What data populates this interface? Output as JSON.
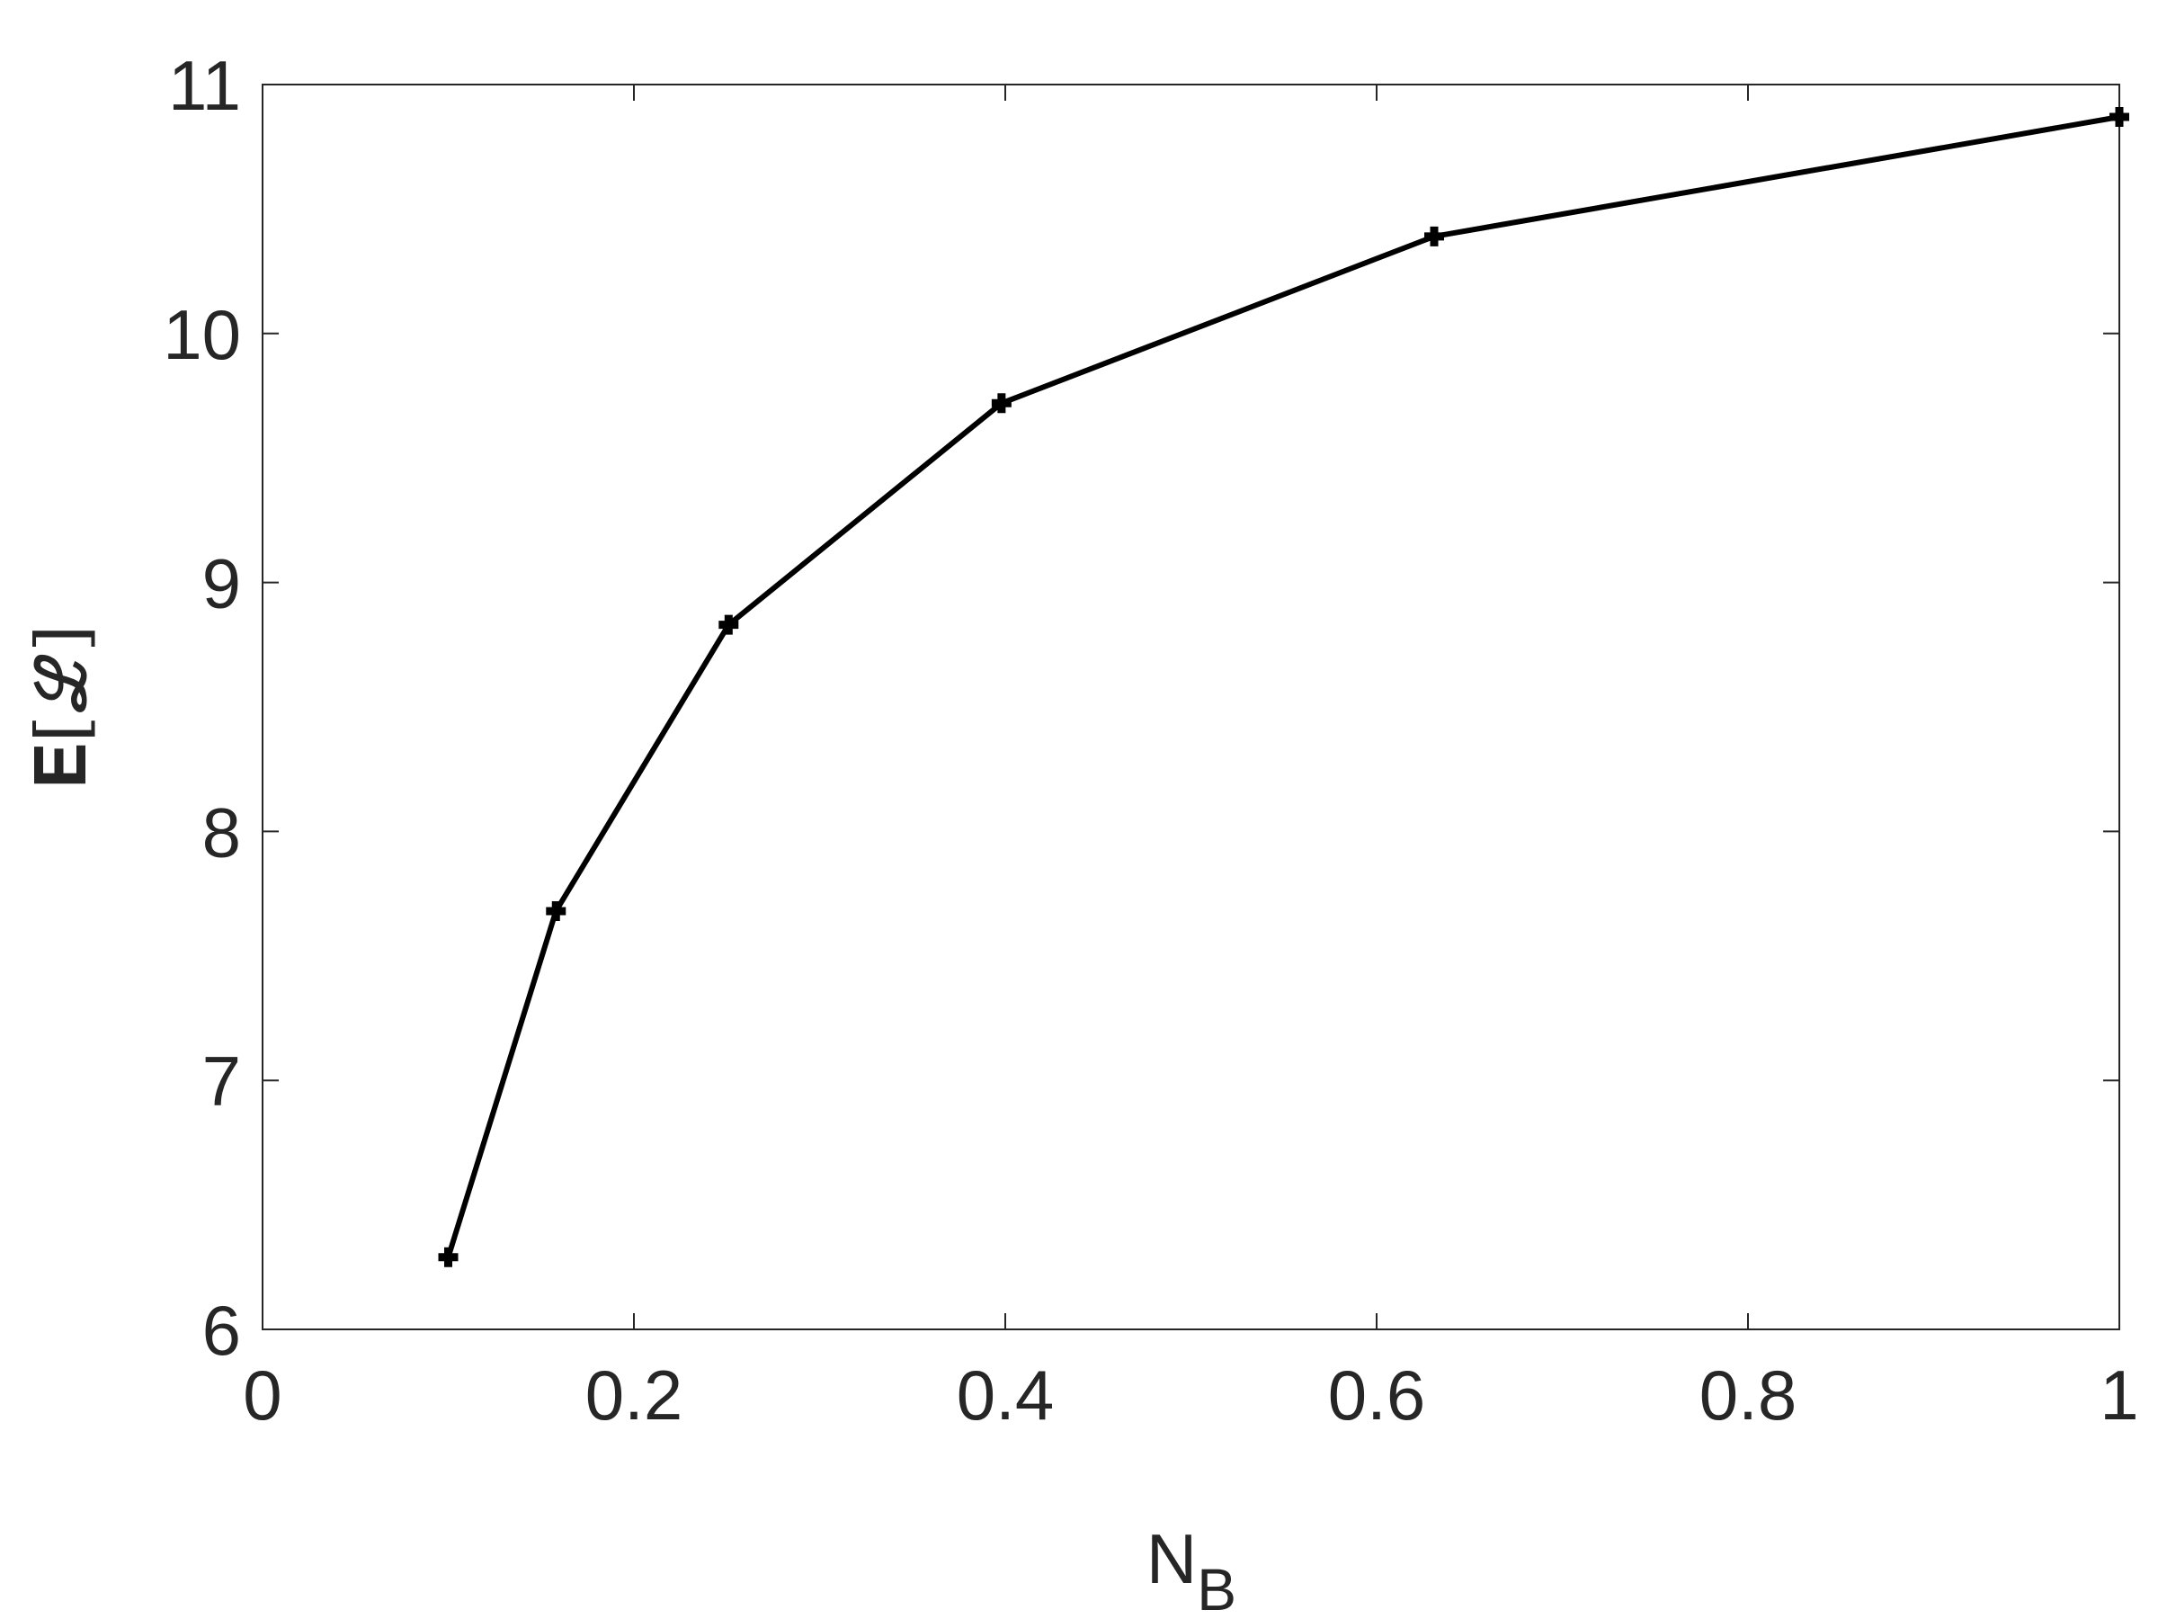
{
  "chart_data": {
    "type": "line",
    "xlabel": "N",
    "xlabel_sub": "B",
    "ylabel": "𝐄[ℒ]",
    "x": [
      0.1,
      0.158,
      0.251,
      0.398,
      0.631,
      1.0
    ],
    "series": [
      {
        "color": "#000000",
        "values": [
          6.29,
          7.68,
          8.83,
          9.72,
          10.39,
          10.87
        ]
      }
    ],
    "xlim": [
      0,
      1
    ],
    "xticks": [
      0,
      0.2,
      0.4,
      0.6,
      0.8,
      1
    ],
    "ylim": [
      6,
      11
    ],
    "yticks": [
      6,
      7,
      8,
      9,
      10,
      11
    ],
    "grid": false,
    "box": true
  }
}
